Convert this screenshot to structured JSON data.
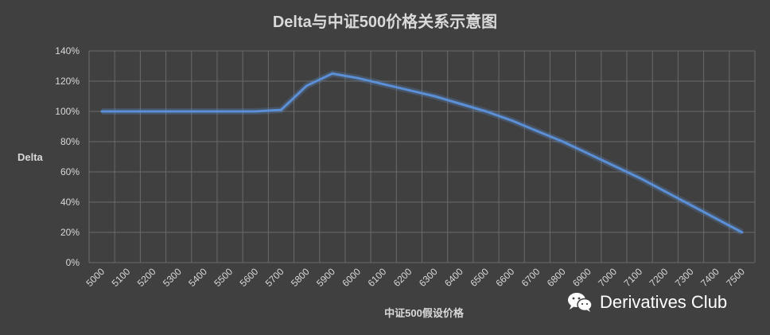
{
  "chart_data": {
    "type": "line",
    "title": "Delta与中证500价格关系示意图",
    "xlabel": "中证500假设价格",
    "ylabel": "Delta",
    "categories": [
      "5000",
      "5100",
      "5200",
      "5300",
      "5400",
      "5500",
      "5600",
      "5700",
      "5800",
      "5900",
      "6000",
      "6100",
      "6200",
      "6300",
      "6400",
      "6500",
      "6600",
      "6700",
      "6800",
      "6900",
      "7000",
      "7100",
      "7200",
      "7300",
      "7400",
      "7500"
    ],
    "y_tick_labels": [
      "0%",
      "20%",
      "40%",
      "60%",
      "80%",
      "100%",
      "120%",
      "140%"
    ],
    "ylim": [
      0,
      1.4
    ],
    "grid": true,
    "line_color": "#5b8fd6",
    "series": [
      {
        "values": [
          1.0,
          1.0,
          1.0,
          1.0,
          1.0,
          1.0,
          1.0,
          1.01,
          1.17,
          1.25,
          1.22,
          1.18,
          1.14,
          1.1,
          1.05,
          1.0,
          0.94,
          0.87,
          0.8,
          0.72,
          0.64,
          0.56,
          0.47,
          0.38,
          0.29,
          0.2
        ]
      }
    ]
  },
  "watermark": {
    "text": "Derivatives Club",
    "icon": "wechat-icon"
  }
}
